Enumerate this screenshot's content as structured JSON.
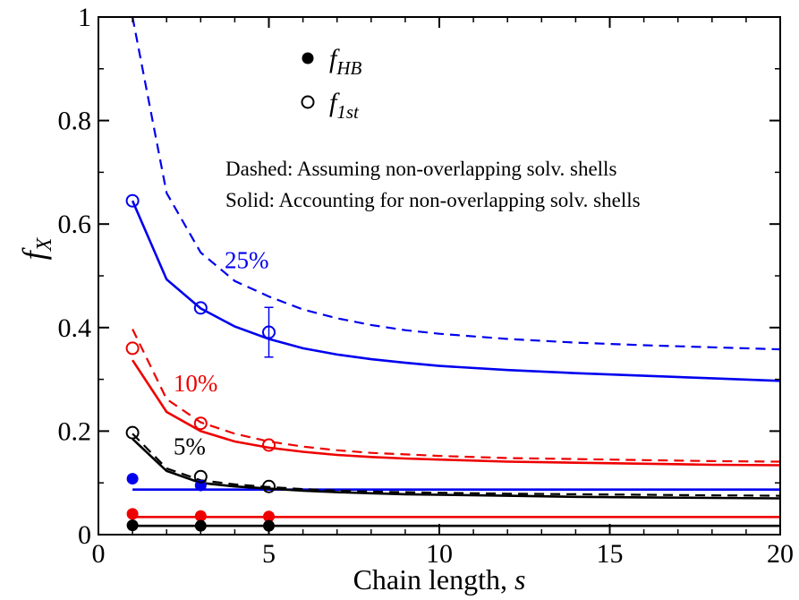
{
  "chart_data": {
    "type": "line",
    "xlabel": "Chain length, ",
    "xlabel_var": "s",
    "ylabel_var": "f",
    "ylabel_sub": "X",
    "xlim": [
      0,
      20
    ],
    "ylim": [
      0,
      1
    ],
    "xticks": [
      0,
      5,
      10,
      15,
      20
    ],
    "yticks": [
      0,
      0.2,
      0.4,
      0.6,
      0.8,
      1
    ],
    "ytick_labels": [
      "0",
      "0.2",
      "0.4",
      "0.6",
      "0.8",
      "1"
    ],
    "grid": false,
    "legend": {
      "placement": "top-center",
      "entries": [
        {
          "marker": "filled-circle",
          "base": "f",
          "sub": "HB"
        },
        {
          "marker": "open-circle",
          "base": "f",
          "sub": "1st"
        }
      ]
    },
    "notes": [
      "Dashed: Assuming non-overlapping solv. shells",
      "Solid: Accounting for non-overlapping solv. shells"
    ],
    "series": [
      {
        "color": "#0000ee",
        "label": "25%",
        "label_at": [
          3.7,
          0.515
        ],
        "dashed_x": [
          1,
          2,
          3,
          4,
          5,
          6,
          7,
          8,
          9,
          10,
          12,
          14,
          16,
          18,
          20
        ],
        "dashed_y": [
          1.0,
          0.66,
          0.545,
          0.49,
          0.46,
          0.435,
          0.418,
          0.405,
          0.395,
          0.388,
          0.378,
          0.371,
          0.366,
          0.362,
          0.358
        ],
        "solid_x": [
          1,
          2,
          3,
          4,
          5,
          6,
          7,
          8,
          9,
          10,
          12,
          14,
          16,
          18,
          20
        ],
        "solid_y": [
          0.645,
          0.493,
          0.437,
          0.402,
          0.378,
          0.36,
          0.348,
          0.339,
          0.332,
          0.326,
          0.318,
          0.312,
          0.307,
          0.302,
          0.297
        ],
        "f1st_x": [
          1,
          3,
          5
        ],
        "f1st_y": [
          0.645,
          0.438,
          0.391
        ],
        "f1st_err": [
          0,
          0,
          0.048
        ],
        "fhb_x": [
          1,
          3
        ],
        "fhb_y": [
          0.108,
          0.095
        ],
        "fhb_level": 0.087
      },
      {
        "color": "#ee0000",
        "label": "10%",
        "label_at": [
          2.2,
          0.277
        ],
        "dashed_x": [
          1,
          2,
          3,
          4,
          5,
          6,
          7,
          8,
          9,
          10,
          12,
          14,
          16,
          18,
          20
        ],
        "dashed_y": [
          0.397,
          0.262,
          0.217,
          0.195,
          0.18,
          0.17,
          0.163,
          0.158,
          0.155,
          0.152,
          0.148,
          0.146,
          0.144,
          0.142,
          0.141
        ],
        "solid_x": [
          1,
          2,
          3,
          4,
          5,
          6,
          7,
          8,
          9,
          10,
          12,
          14,
          16,
          18,
          20
        ],
        "solid_y": [
          0.337,
          0.237,
          0.2,
          0.18,
          0.168,
          0.16,
          0.154,
          0.15,
          0.147,
          0.145,
          0.141,
          0.139,
          0.137,
          0.135,
          0.134
        ],
        "f1st_x": [
          1,
          3,
          5
        ],
        "f1st_y": [
          0.36,
          0.215,
          0.173
        ],
        "f1st_err": [
          0,
          0,
          0
        ],
        "fhb_x": [
          1,
          3,
          5
        ],
        "fhb_y": [
          0.04,
          0.036,
          0.035
        ],
        "fhb_level": 0.034
      },
      {
        "color": "#000000",
        "label": "5%",
        "label_at": [
          2.2,
          0.155
        ],
        "dashed_x": [
          1,
          2,
          3,
          4,
          5,
          6,
          7,
          8,
          9,
          10,
          12,
          14,
          16,
          18,
          20
        ],
        "dashed_y": [
          0.195,
          0.128,
          0.105,
          0.097,
          0.092,
          0.088,
          0.085,
          0.083,
          0.082,
          0.081,
          0.079,
          0.078,
          0.077,
          0.076,
          0.075
        ],
        "solid_x": [
          1,
          2,
          3,
          4,
          5,
          6,
          7,
          8,
          9,
          10,
          12,
          14,
          16,
          18,
          20
        ],
        "solid_y": [
          0.185,
          0.123,
          0.1,
          0.093,
          0.089,
          0.085,
          0.082,
          0.08,
          0.078,
          0.077,
          0.075,
          0.073,
          0.072,
          0.071,
          0.07
        ],
        "f1st_x": [
          1,
          3,
          5
        ],
        "f1st_y": [
          0.197,
          0.112,
          0.093
        ],
        "f1st_err": [
          0,
          0,
          0
        ],
        "fhb_x": [
          1,
          3,
          5
        ],
        "fhb_y": [
          0.018,
          0.017,
          0.017
        ],
        "fhb_level": 0.017
      }
    ]
  }
}
